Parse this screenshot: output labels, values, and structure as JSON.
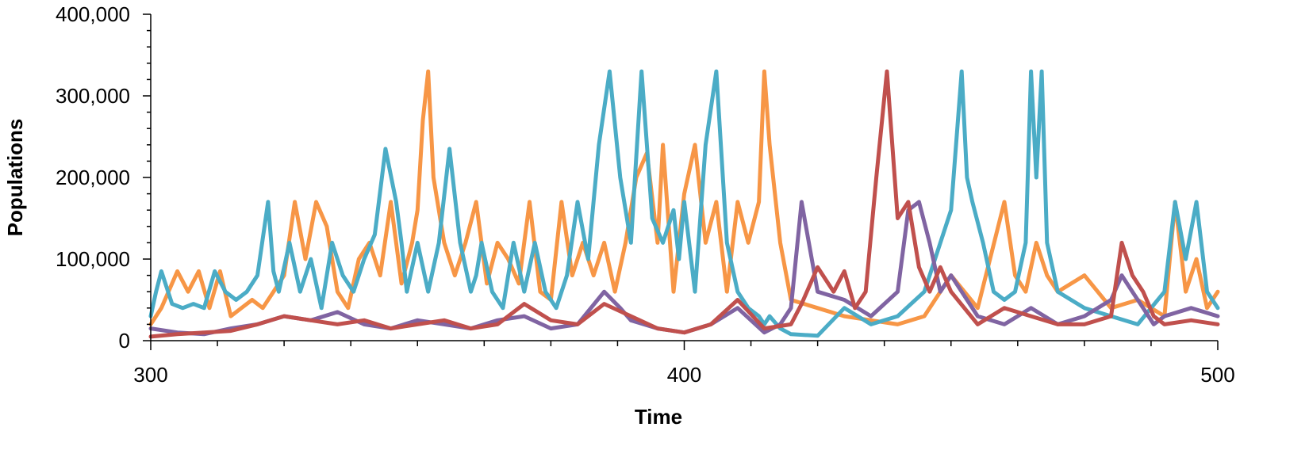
{
  "chart_data": {
    "type": "line",
    "title": "",
    "xlabel": "Time",
    "ylabel": "Populations",
    "xlim": [
      300,
      500
    ],
    "ylim": [
      0,
      400000
    ],
    "x_ticks": [
      300,
      400,
      500
    ],
    "x_tick_labels": [
      "300",
      "400",
      "500"
    ],
    "y_ticks": [
      0,
      100000,
      200000,
      300000,
      400000
    ],
    "y_tick_labels": [
      "0",
      "100,000",
      "200,000",
      "300,000",
      "400,000"
    ],
    "grid": false,
    "legend": "none",
    "series": [
      {
        "color": "#F79646",
        "x": [
          300,
          302,
          305,
          307,
          309,
          311,
          313,
          315,
          317,
          319,
          321,
          323,
          325,
          327,
          329,
          331,
          333,
          335,
          337,
          339,
          341,
          343,
          345,
          347,
          349,
          350,
          351,
          352,
          353,
          355,
          357,
          359,
          361,
          363,
          365,
          367,
          369,
          371,
          373,
          375,
          377,
          379,
          381,
          383,
          385,
          387,
          389,
          391,
          393,
          395,
          396,
          397,
          398,
          400,
          402,
          404,
          406,
          408,
          410,
          412,
          414,
          415,
          416,
          418,
          420,
          425,
          430,
          435,
          440,
          445,
          450,
          455,
          460,
          462,
          464,
          466,
          468,
          470,
          475,
          480,
          485,
          490,
          492,
          494,
          496,
          498,
          500
        ],
        "y": [
          20000,
          40000,
          85000,
          60000,
          85000,
          40000,
          85000,
          30000,
          40000,
          50000,
          40000,
          60000,
          80000,
          170000,
          100000,
          170000,
          140000,
          60000,
          40000,
          100000,
          120000,
          80000,
          170000,
          70000,
          120000,
          160000,
          270000,
          330000,
          200000,
          120000,
          80000,
          120000,
          170000,
          70000,
          120000,
          100000,
          70000,
          170000,
          60000,
          50000,
          170000,
          80000,
          120000,
          80000,
          120000,
          60000,
          120000,
          200000,
          230000,
          120000,
          240000,
          150000,
          60000,
          180000,
          240000,
          120000,
          170000,
          60000,
          170000,
          120000,
          170000,
          330000,
          240000,
          120000,
          50000,
          40000,
          30000,
          25000,
          20000,
          30000,
          80000,
          40000,
          170000,
          80000,
          60000,
          120000,
          80000,
          60000,
          80000,
          40000,
          50000,
          30000,
          170000,
          60000,
          100000,
          40000,
          60000
        ]
      },
      {
        "color": "#4BACC6",
        "x": [
          300,
          301,
          302,
          304,
          306,
          308,
          310,
          312,
          314,
          316,
          318,
          320,
          322,
          323,
          324,
          326,
          328,
          330,
          332,
          334,
          336,
          338,
          340,
          342,
          344,
          346,
          347,
          348,
          350,
          352,
          354,
          356,
          358,
          360,
          361,
          362,
          364,
          366,
          368,
          370,
          372,
          374,
          376,
          378,
          380,
          382,
          384,
          386,
          388,
          390,
          392,
          393,
          394,
          396,
          398,
          399,
          400,
          402,
          404,
          406,
          408,
          410,
          412,
          414,
          415,
          416,
          418,
          420,
          425,
          430,
          435,
          440,
          445,
          450,
          452,
          453,
          454,
          456,
          458,
          460,
          462,
          464,
          465,
          466,
          467,
          468,
          470,
          475,
          480,
          485,
          490,
          492,
          494,
          496,
          498,
          500
        ],
        "y": [
          30000,
          60000,
          85000,
          45000,
          40000,
          45000,
          40000,
          85000,
          60000,
          50000,
          60000,
          80000,
          170000,
          85000,
          60000,
          120000,
          60000,
          100000,
          40000,
          120000,
          80000,
          60000,
          100000,
          130000,
          235000,
          170000,
          120000,
          60000,
          120000,
          60000,
          120000,
          235000,
          120000,
          60000,
          80000,
          120000,
          60000,
          40000,
          120000,
          60000,
          120000,
          60000,
          40000,
          80000,
          170000,
          100000,
          240000,
          330000,
          200000,
          120000,
          330000,
          240000,
          150000,
          120000,
          160000,
          100000,
          170000,
          60000,
          240000,
          330000,
          120000,
          60000,
          40000,
          30000,
          20000,
          30000,
          15000,
          8000,
          6000,
          40000,
          20000,
          30000,
          60000,
          160000,
          330000,
          200000,
          170000,
          120000,
          60000,
          50000,
          60000,
          120000,
          330000,
          200000,
          330000,
          120000,
          60000,
          40000,
          30000,
          20000,
          60000,
          170000,
          100000,
          170000,
          60000,
          40000
        ]
      },
      {
        "color": "#8064A2",
        "x": [
          300,
          305,
          310,
          315,
          320,
          325,
          330,
          335,
          340,
          345,
          350,
          355,
          360,
          365,
          370,
          375,
          380,
          385,
          388,
          390,
          395,
          400,
          405,
          410,
          415,
          418,
          420,
          422,
          425,
          430,
          435,
          440,
          442,
          444,
          446,
          448,
          450,
          455,
          460,
          465,
          470,
          475,
          480,
          482,
          484,
          486,
          488,
          490,
          495,
          500
        ],
        "y": [
          15000,
          10000,
          8000,
          15000,
          20000,
          30000,
          25000,
          35000,
          20000,
          15000,
          25000,
          20000,
          15000,
          25000,
          30000,
          15000,
          20000,
          60000,
          40000,
          25000,
          15000,
          10000,
          20000,
          40000,
          10000,
          20000,
          40000,
          170000,
          60000,
          50000,
          30000,
          60000,
          160000,
          170000,
          120000,
          60000,
          80000,
          30000,
          20000,
          40000,
          20000,
          30000,
          50000,
          80000,
          60000,
          40000,
          20000,
          30000,
          40000,
          30000
        ]
      },
      {
        "color": "#C0504D",
        "x": [
          300,
          305,
          310,
          315,
          320,
          325,
          330,
          335,
          340,
          345,
          350,
          355,
          360,
          365,
          370,
          375,
          380,
          385,
          390,
          395,
          400,
          405,
          410,
          415,
          420,
          422,
          425,
          428,
          430,
          432,
          434,
          436,
          438,
          440,
          442,
          444,
          446,
          448,
          450,
          455,
          460,
          465,
          470,
          475,
          480,
          482,
          484,
          486,
          488,
          490,
          495,
          500
        ],
        "y": [
          5000,
          8000,
          10000,
          12000,
          20000,
          30000,
          25000,
          20000,
          25000,
          15000,
          20000,
          25000,
          15000,
          20000,
          45000,
          25000,
          20000,
          45000,
          30000,
          15000,
          10000,
          20000,
          50000,
          15000,
          20000,
          45000,
          90000,
          60000,
          85000,
          40000,
          60000,
          200000,
          330000,
          150000,
          170000,
          90000,
          60000,
          90000,
          60000,
          20000,
          40000,
          30000,
          20000,
          20000,
          30000,
          120000,
          80000,
          60000,
          30000,
          20000,
          25000,
          20000
        ]
      }
    ]
  }
}
